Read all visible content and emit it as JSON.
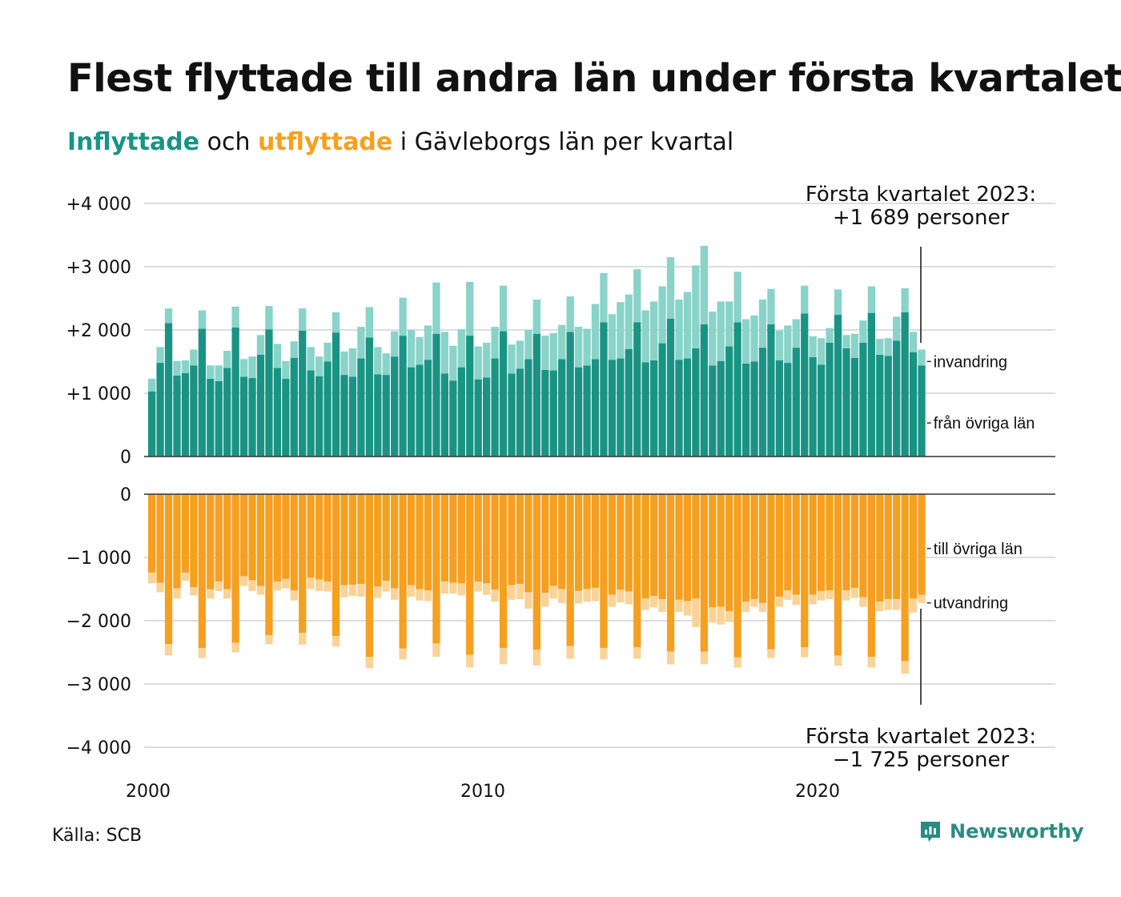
{
  "title": "Flest flyttade till andra län under första kvartalet",
  "subtitle": {
    "in_word": "Inflyttade",
    "mid1": " och ",
    "out_word": "utflyttade",
    "rest": " i Gävleborgs län per kvartal"
  },
  "source": "Källa: SCB",
  "brand": "Newsworthy",
  "colors": {
    "in_domestic": "#1a9384",
    "in_immigration": "#89d3c9",
    "out_domestic": "#f5a020",
    "out_emigration": "#f9d397",
    "grid": "#dddddd",
    "axis": "#333333"
  },
  "annotations": {
    "top_line1": "Första kvartalet 2023:",
    "top_line2": "+1 689 personer",
    "bottom_line1": "Första kvartalet 2023:",
    "bottom_line2": "−1 725 personer"
  },
  "chart_data": [
    {
      "type": "bar",
      "stacked": true,
      "panel": "inflyttade",
      "yticks": [
        "0",
        "+1 000",
        "+2 000",
        "+3 000",
        "+4 000"
      ],
      "ylim": [
        0,
        4000
      ],
      "x_start": "2000 Q1",
      "x_end": "2023 Q1",
      "xticks": [
        "2000",
        "2010",
        "2020"
      ],
      "series": [
        {
          "name": "från övriga län",
          "values": [
            1030,
            1480,
            2110,
            1280,
            1320,
            1440,
            2020,
            1230,
            1190,
            1400,
            2040,
            1260,
            1240,
            1610,
            2010,
            1400,
            1230,
            1560,
            1990,
            1360,
            1270,
            1500,
            1960,
            1290,
            1260,
            1550,
            1880,
            1300,
            1290,
            1580,
            1910,
            1410,
            1450,
            1530,
            1940,
            1310,
            1200,
            1410,
            1910,
            1220,
            1250,
            1550,
            1980,
            1310,
            1390,
            1540,
            1940,
            1370,
            1360,
            1540,
            1970,
            1410,
            1440,
            1540,
            2120,
            1530,
            1550,
            1700,
            2120,
            1490,
            1520,
            1790,
            2180,
            1530,
            1550,
            1710,
            2090,
            1440,
            1510,
            1740,
            2120,
            1470,
            1500,
            1720,
            2090,
            1520,
            1480,
            1720,
            2260,
            1570,
            1450,
            1800,
            2240,
            1710,
            1560,
            1800,
            2270,
            1610,
            1590,
            1830,
            2280,
            1650,
            1440
          ]
        },
        {
          "name": "invandring",
          "values": [
            200,
            250,
            230,
            230,
            200,
            250,
            290,
            210,
            250,
            270,
            330,
            280,
            340,
            310,
            370,
            380,
            280,
            260,
            350,
            370,
            310,
            300,
            320,
            370,
            450,
            500,
            480,
            430,
            340,
            400,
            600,
            590,
            440,
            540,
            810,
            660,
            550,
            600,
            850,
            520,
            550,
            500,
            720,
            460,
            440,
            460,
            540,
            540,
            590,
            540,
            560,
            640,
            580,
            870,
            780,
            720,
            890,
            860,
            840,
            820,
            930,
            900,
            970,
            950,
            1050,
            1310,
            1240,
            850,
            940,
            710,
            800,
            700,
            730,
            760,
            560,
            470,
            590,
            450,
            440,
            330,
            420,
            230,
            400,
            210,
            380,
            350,
            420,
            250,
            280,
            380,
            380,
            320,
            250
          ]
        }
      ]
    },
    {
      "type": "bar",
      "stacked": true,
      "panel": "utflyttade",
      "yticks": [
        "0",
        "−1 000",
        "−2 000",
        "−3 000",
        "−4 000"
      ],
      "ylim": [
        -4000,
        0
      ],
      "x_start": "2000 Q1",
      "x_end": "2023 Q1",
      "xticks": [
        "2000",
        "2010",
        "2020"
      ],
      "series": [
        {
          "name": "till övriga län",
          "values": [
            -1240,
            -1400,
            -2370,
            -1490,
            -1240,
            -1470,
            -2430,
            -1500,
            -1380,
            -1500,
            -2350,
            -1300,
            -1360,
            -1450,
            -2230,
            -1380,
            -1340,
            -1520,
            -2190,
            -1320,
            -1350,
            -1380,
            -2240,
            -1440,
            -1430,
            -1420,
            -2570,
            -1460,
            -1370,
            -1490,
            -2440,
            -1440,
            -1500,
            -1520,
            -2360,
            -1380,
            -1400,
            -1410,
            -2540,
            -1380,
            -1410,
            -1510,
            -2430,
            -1440,
            -1420,
            -1550,
            -2460,
            -1560,
            -1450,
            -1500,
            -2400,
            -1530,
            -1500,
            -1480,
            -2430,
            -1590,
            -1510,
            -1540,
            -2420,
            -1650,
            -1610,
            -1660,
            -2490,
            -1670,
            -1690,
            -1650,
            -2490,
            -1790,
            -1780,
            -1850,
            -2580,
            -1700,
            -1660,
            -1720,
            -2450,
            -1620,
            -1520,
            -1590,
            -2420,
            -1590,
            -1530,
            -1520,
            -2550,
            -1520,
            -1480,
            -1630,
            -2570,
            -1700,
            -1660,
            -1660,
            -2640,
            -1650,
            -1590
          ]
        },
        {
          "name": "utvandring",
          "values": [
            -170,
            -150,
            -180,
            -160,
            -130,
            -130,
            -160,
            -150,
            -150,
            -150,
            -150,
            -150,
            -170,
            -140,
            -140,
            -140,
            -150,
            -160,
            -190,
            -180,
            -180,
            -160,
            -170,
            -190,
            -180,
            -200,
            -180,
            -180,
            -170,
            -180,
            -170,
            -180,
            -180,
            -170,
            -210,
            -190,
            -170,
            -190,
            -200,
            -160,
            -180,
            -190,
            -260,
            -230,
            -240,
            -260,
            -250,
            -220,
            -200,
            -220,
            -200,
            -200,
            -200,
            -210,
            -180,
            -190,
            -200,
            -200,
            -180,
            -180,
            -180,
            -200,
            -200,
            -190,
            -230,
            -450,
            -200,
            -240,
            -280,
            -170,
            -160,
            -160,
            -120,
            -140,
            -140,
            -160,
            -150,
            -160,
            -160,
            -150,
            -150,
            -140,
            -160,
            -160,
            -160,
            -150,
            -170,
            -150,
            -170,
            -170,
            -200,
            -220,
            -130
          ]
        }
      ]
    }
  ]
}
